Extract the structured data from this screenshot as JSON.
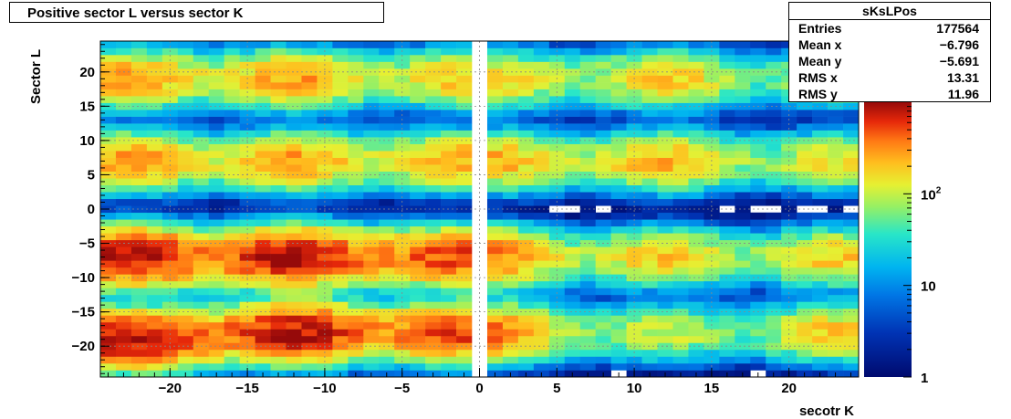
{
  "chart_data": {
    "type": "heatmap",
    "title": "Positive sector L versus sector K",
    "xlabel": "secotr K",
    "ylabel": "Sector L",
    "xlim": [
      -24.5,
      24.5
    ],
    "ylim": [
      -24.5,
      24.5
    ],
    "x_ticks": [
      -20,
      -15,
      -10,
      -5,
      0,
      5,
      10,
      15,
      20
    ],
    "y_ticks": [
      -20,
      -15,
      -10,
      -5,
      0,
      5,
      10,
      15,
      20
    ],
    "z_scale": "log",
    "z_range": [
      1,
      1000
    ],
    "z_tick_labels": [
      {
        "value": 1,
        "label": "1"
      },
      {
        "value": 10,
        "label": "10"
      },
      {
        "value": 100,
        "label": "10^2"
      }
    ],
    "grid": true,
    "clusters": [
      {
        "kx": -22.5,
        "ly": -19,
        "peak": 900
      },
      {
        "kx": -22.5,
        "ly": -7,
        "peak": 900
      },
      {
        "kx": -22.5,
        "ly": 7,
        "peak": 300
      },
      {
        "kx": -22.5,
        "ly": 19,
        "peak": 300
      },
      {
        "kx": -12,
        "ly": -18,
        "peak": 900
      },
      {
        "kx": -12,
        "ly": -7,
        "peak": 900
      },
      {
        "kx": -12,
        "ly": 7,
        "peak": 300
      },
      {
        "kx": -12,
        "ly": 19,
        "peak": 300
      },
      {
        "kx": -2,
        "ly": -18,
        "peak": 500
      },
      {
        "kx": -2,
        "ly": -7,
        "peak": 500
      },
      {
        "kx": -2,
        "ly": 7,
        "peak": 200
      },
      {
        "kx": -2,
        "ly": 19,
        "peak": 150
      },
      {
        "kx": 2,
        "ly": -18,
        "peak": 150
      },
      {
        "kx": 2,
        "ly": -7,
        "peak": 150
      },
      {
        "kx": 2,
        "ly": 7,
        "peak": 150
      },
      {
        "kx": 2,
        "ly": 19,
        "peak": 120
      },
      {
        "kx": 12,
        "ly": -18,
        "peak": 120
      },
      {
        "kx": 12,
        "ly": -7,
        "peak": 200
      },
      {
        "kx": 12,
        "ly": 7,
        "peak": 250
      },
      {
        "kx": 12,
        "ly": 19,
        "peak": 200
      },
      {
        "kx": 23,
        "ly": -18,
        "peak": 200
      },
      {
        "kx": 23,
        "ly": -7,
        "peak": 200
      },
      {
        "kx": 23,
        "ly": 7,
        "peak": 150
      },
      {
        "kx": 23,
        "ly": 19,
        "peak": 100
      }
    ],
    "stats": {
      "name": "sKsLPos",
      "entries": [
        {
          "key": "Entries",
          "value": "177564"
        },
        {
          "key": "Mean x",
          "value": "−6.796"
        },
        {
          "key": "Mean y",
          "value": "−5.691"
        },
        {
          "key": "RMS x",
          "value": "13.31"
        },
        {
          "key": "RMS y",
          "value": "11.96"
        }
      ]
    }
  }
}
